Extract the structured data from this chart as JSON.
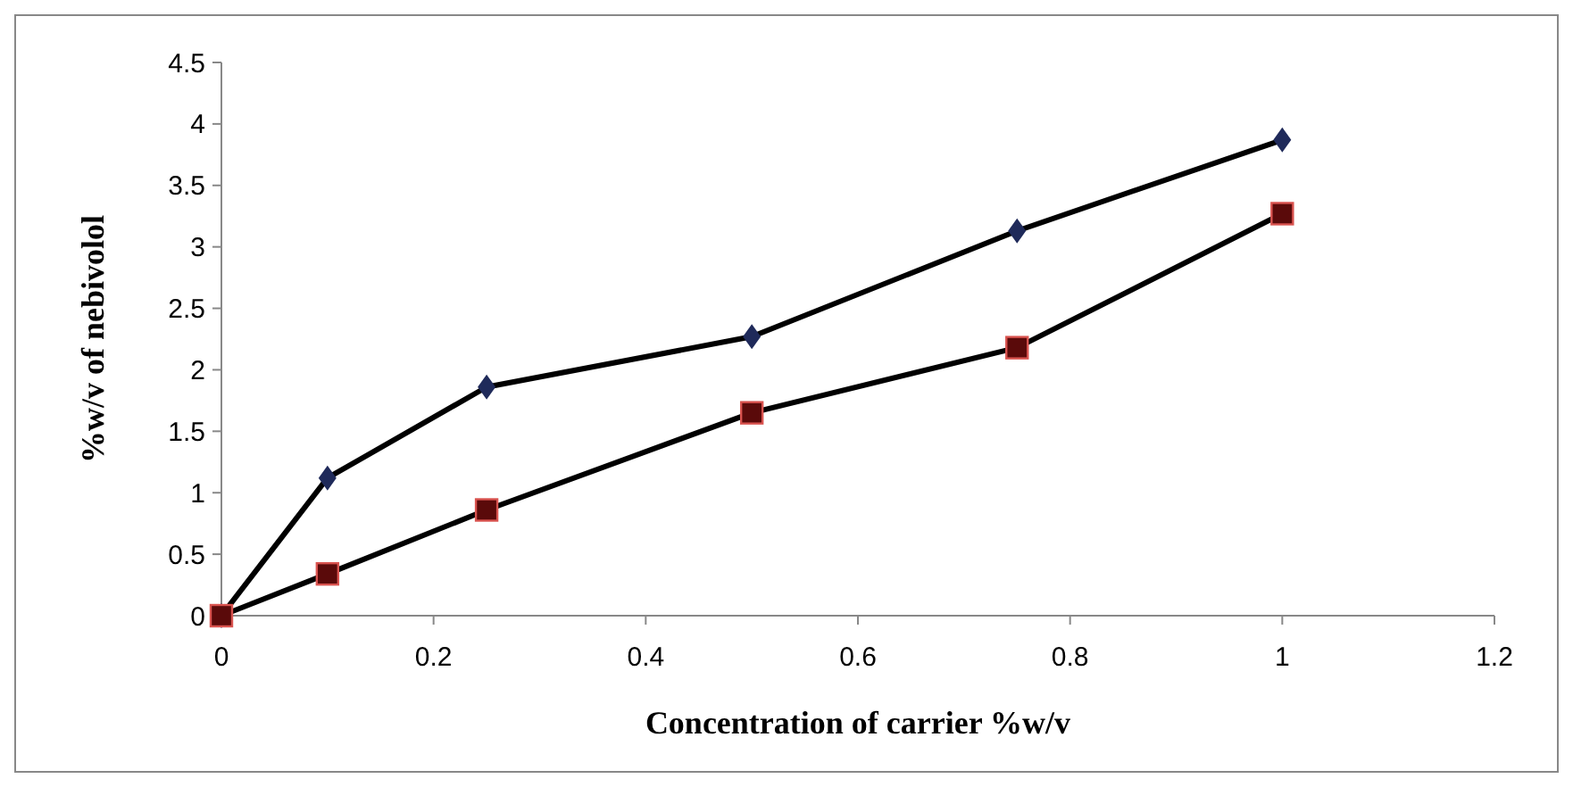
{
  "chart_data": {
    "type": "line",
    "xlabel": "Concentration of carrier %w/v",
    "ylabel": "%w/v of nebivolol",
    "x": [
      0,
      0.1,
      0.25,
      0.5,
      0.75,
      1
    ],
    "series": [
      {
        "color": "#000000",
        "marker": "diamond",
        "values": [
          0,
          1.12,
          1.86,
          2.27,
          3.13,
          3.87
        ]
      },
      {
        "color": "#000000",
        "marker": "square",
        "values": [
          0,
          0.34,
          0.86,
          1.65,
          2.18,
          3.27
        ]
      }
    ],
    "xlim": [
      0,
      1.2
    ],
    "xticks": [
      0,
      0.2,
      0.4,
      0.6,
      0.8,
      1,
      1.2
    ],
    "ylim": [
      0,
      4.5
    ],
    "yticks": [
      0,
      0.5,
      1,
      1.5,
      2,
      2.5,
      3,
      3.5,
      4,
      4.5
    ],
    "grid": false,
    "line_style": "solid"
  }
}
